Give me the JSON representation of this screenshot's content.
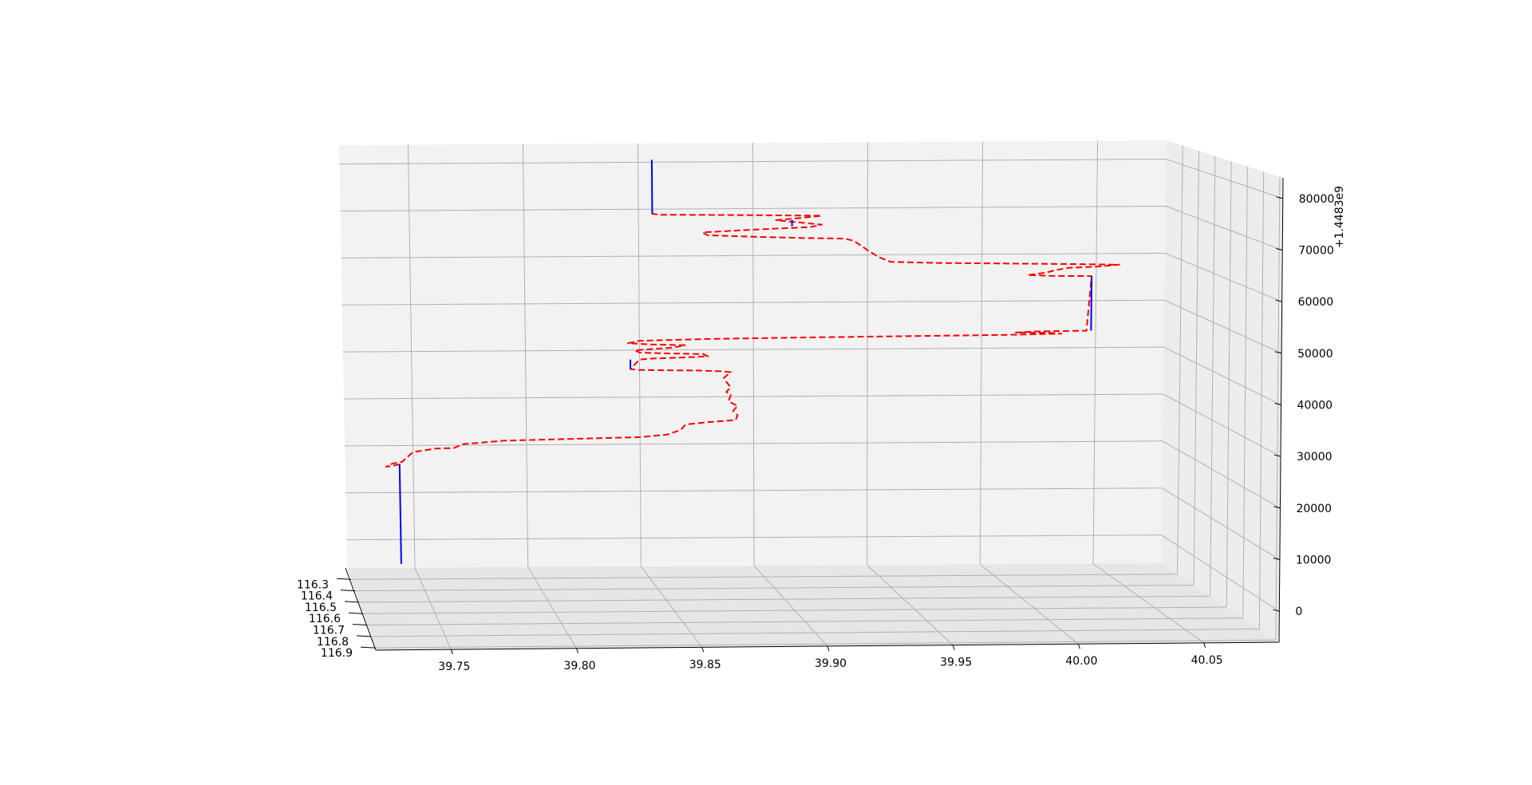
{
  "chart_data": {
    "type": "line3d",
    "title": "",
    "x_axis": {
      "label": "",
      "ticks": [
        "39.75",
        "39.80",
        "39.85",
        "39.90",
        "39.95",
        "40.00",
        "40.05"
      ],
      "range": [
        39.72,
        40.08
      ]
    },
    "y_axis": {
      "label": "",
      "ticks": [
        "116.3",
        "116.4",
        "116.5",
        "116.6",
        "116.7",
        "116.8",
        "116.9"
      ],
      "range": [
        116.28,
        116.9
      ]
    },
    "z_axis": {
      "label": "",
      "offset_text": "+1.4483e9",
      "ticks": [
        "0",
        "10000",
        "20000",
        "30000",
        "40000",
        "50000",
        "60000",
        "70000",
        "80000"
      ],
      "range": [
        -6000,
        84000
      ]
    },
    "grid": true,
    "colors": {
      "trajectory": "#ff0000",
      "stay": "#0000ff",
      "pane": "#f2f2f2",
      "grid": "#b0b0b0"
    },
    "series": [
      {
        "style": "dashed",
        "color": "#ff0000",
        "points": [
          [
            39.744,
            16000
          ],
          [
            39.742,
            15800
          ],
          [
            39.738,
            15500
          ],
          [
            39.741,
            16200
          ],
          [
            39.745,
            16500
          ],
          [
            39.75,
            18600
          ],
          [
            39.76,
            19300
          ],
          [
            39.768,
            19400
          ],
          [
            39.772,
            20200
          ],
          [
            39.79,
            20900
          ],
          [
            39.81,
            21100
          ],
          [
            39.83,
            21300
          ],
          [
            39.85,
            21500
          ],
          [
            39.862,
            22000
          ],
          [
            39.868,
            23000
          ],
          [
            39.87,
            24100
          ],
          [
            39.88,
            24600
          ],
          [
            39.892,
            25000
          ],
          [
            39.893,
            26000
          ],
          [
            39.891,
            27000
          ],
          [
            39.893,
            28000
          ],
          [
            39.889,
            29000
          ],
          [
            39.89,
            30400
          ],
          [
            39.888,
            31000
          ],
          [
            39.89,
            32000
          ],
          [
            39.888,
            33200
          ],
          [
            39.887,
            34000
          ],
          [
            39.89,
            35200
          ],
          [
            39.886,
            35400
          ],
          [
            39.875,
            35600
          ],
          [
            39.86,
            35700
          ],
          [
            39.85,
            35800
          ],
          [
            39.846,
            36000
          ],
          [
            39.85,
            38000
          ],
          [
            39.855,
            38200
          ],
          [
            39.87,
            38400
          ],
          [
            39.88,
            38600
          ],
          [
            39.878,
            39100
          ],
          [
            39.86,
            39300
          ],
          [
            39.85,
            39500
          ],
          [
            39.848,
            40000
          ],
          [
            39.865,
            40500
          ],
          [
            39.87,
            41000
          ],
          [
            39.855,
            41200
          ],
          [
            39.845,
            41500
          ],
          [
            39.85,
            42000
          ],
          [
            39.88,
            42300
          ],
          [
            39.92,
            42500
          ],
          [
            39.98,
            42700
          ],
          [
            40.01,
            42800
          ],
          [
            40.025,
            42900
          ],
          [
            40.035,
            43000
          ],
          [
            40.03,
            43200
          ],
          [
            40.015,
            43300
          ],
          [
            40.025,
            43500
          ],
          [
            40.046,
            43600
          ],
          [
            40.048,
            55200
          ],
          [
            40.03,
            55300
          ],
          [
            40.02,
            55500
          ],
          [
            40.028,
            56000
          ],
          [
            40.032,
            56500
          ],
          [
            40.038,
            57000
          ],
          [
            40.05,
            57200
          ],
          [
            40.06,
            57600
          ],
          [
            40.04,
            57800
          ],
          [
            40.01,
            58000
          ],
          [
            39.98,
            58200
          ],
          [
            39.96,
            58500
          ],
          [
            39.955,
            59500
          ],
          [
            39.95,
            61000
          ],
          [
            39.944,
            63000
          ],
          [
            39.94,
            63500
          ],
          [
            39.92,
            63700
          ],
          [
            39.9,
            64000
          ],
          [
            39.88,
            64400
          ],
          [
            39.878,
            65000
          ],
          [
            39.9,
            65500
          ],
          [
            39.925,
            66000
          ],
          [
            39.93,
            66500
          ],
          [
            39.92,
            67000
          ],
          [
            39.91,
            67500
          ],
          [
            39.922,
            68000
          ],
          [
            39.93,
            68400
          ],
          [
            39.9,
            68600
          ],
          [
            39.88,
            68700
          ],
          [
            39.86,
            68800
          ],
          [
            39.856,
            69000
          ]
        ]
      },
      {
        "style": "solid",
        "color": "#0000ff",
        "points": [
          [
            39.744,
            -5200
          ],
          [
            39.744,
            16000
          ]
        ]
      },
      {
        "style": "solid",
        "color": "#0000ff",
        "points": [
          [
            40.048,
            43600
          ],
          [
            40.048,
            55200
          ]
        ]
      },
      {
        "style": "solid",
        "color": "#0000ff",
        "points": [
          [
            39.846,
            36000
          ],
          [
            39.846,
            38000
          ]
        ]
      },
      {
        "style": "solid",
        "color": "#0000ff",
        "points": [
          [
            39.856,
            69000
          ],
          [
            39.856,
            80500
          ]
        ]
      },
      {
        "style": "solid",
        "color": "#0000ff",
        "points": [
          [
            39.917,
            66200
          ],
          [
            39.917,
            67500
          ]
        ]
      }
    ]
  }
}
